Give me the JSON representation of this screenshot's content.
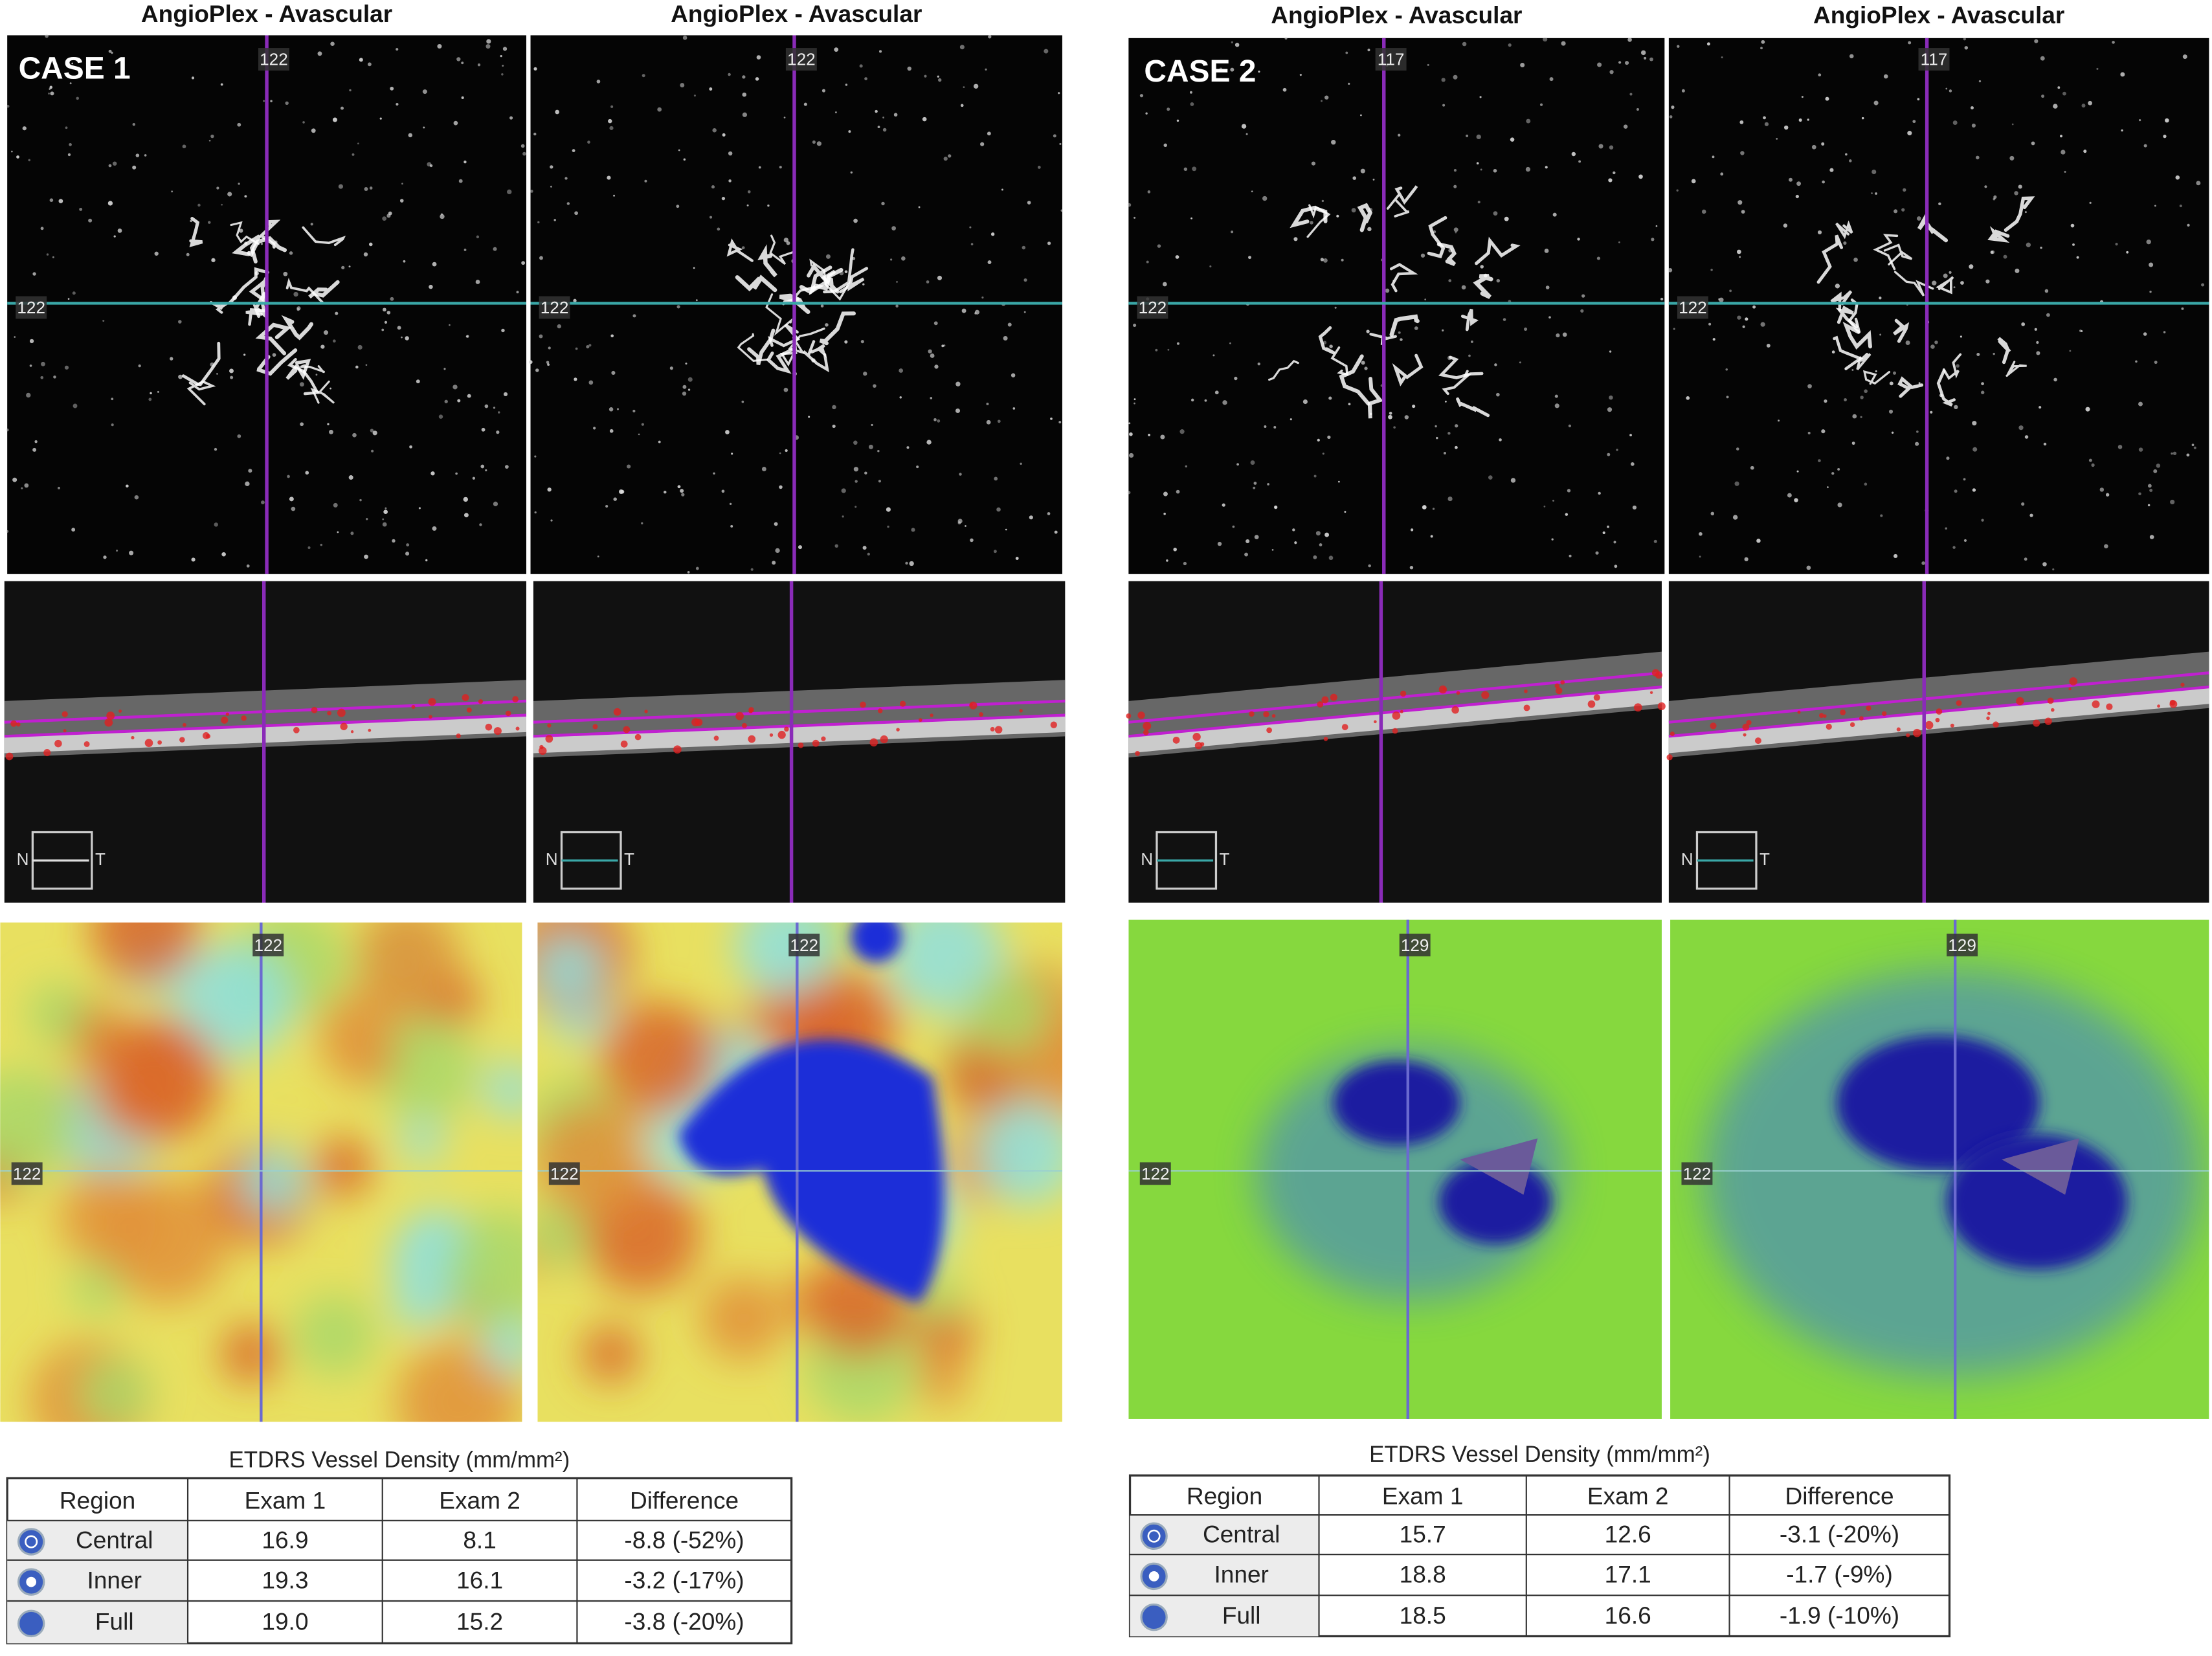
{
  "cases": [
    {
      "label": "CASE 1",
      "panels": [
        {
          "title": "AngioPlex - Avascular",
          "angio_top": "122",
          "angio_left": "122",
          "map_top": "122",
          "map_left": "122",
          "nasal": "N",
          "temporal": "T"
        },
        {
          "title": "AngioPlex - Avascular",
          "angio_top": "122",
          "angio_left": "122",
          "map_top": "122",
          "map_left": "122",
          "nasal": "N",
          "temporal": "T"
        }
      ],
      "table": {
        "title": "ETDRS Vessel Density (mm/mm²)",
        "header": [
          "Region",
          "Exam 1",
          "Exam 2",
          "Difference"
        ],
        "rows": [
          [
            "Central",
            "16.9",
            "8.1",
            "-8.8 (-52%)"
          ],
          [
            "Inner",
            "19.3",
            "16.1",
            "-3.2 (-17%)"
          ],
          [
            "Full",
            "19.0",
            "15.2",
            "-3.8 (-20%)"
          ]
        ]
      }
    },
    {
      "label": "CASE 2",
      "panels": [
        {
          "title": "AngioPlex - Avascular",
          "angio_top": "117",
          "angio_left": "122",
          "map_top": "129",
          "map_left": "122",
          "nasal": "N",
          "temporal": "T"
        },
        {
          "title": "AngioPlex - Avascular",
          "angio_top": "117",
          "angio_left": "122",
          "map_top": "129",
          "map_left": "122",
          "nasal": "N",
          "temporal": "T"
        }
      ],
      "table": {
        "title": "ETDRS Vessel Density (mm/mm²)",
        "header": [
          "Region",
          "Exam 1",
          "Exam 2",
          "Difference"
        ],
        "rows": [
          [
            "Central",
            "15.7",
            "12.6",
            "-3.1 (-20%)"
          ],
          [
            "Inner",
            "18.8",
            "17.1",
            "-1.7 (-9%)"
          ],
          [
            "Full",
            "18.5",
            "16.6",
            "-1.9 (-10%)"
          ]
        ]
      }
    }
  ]
}
